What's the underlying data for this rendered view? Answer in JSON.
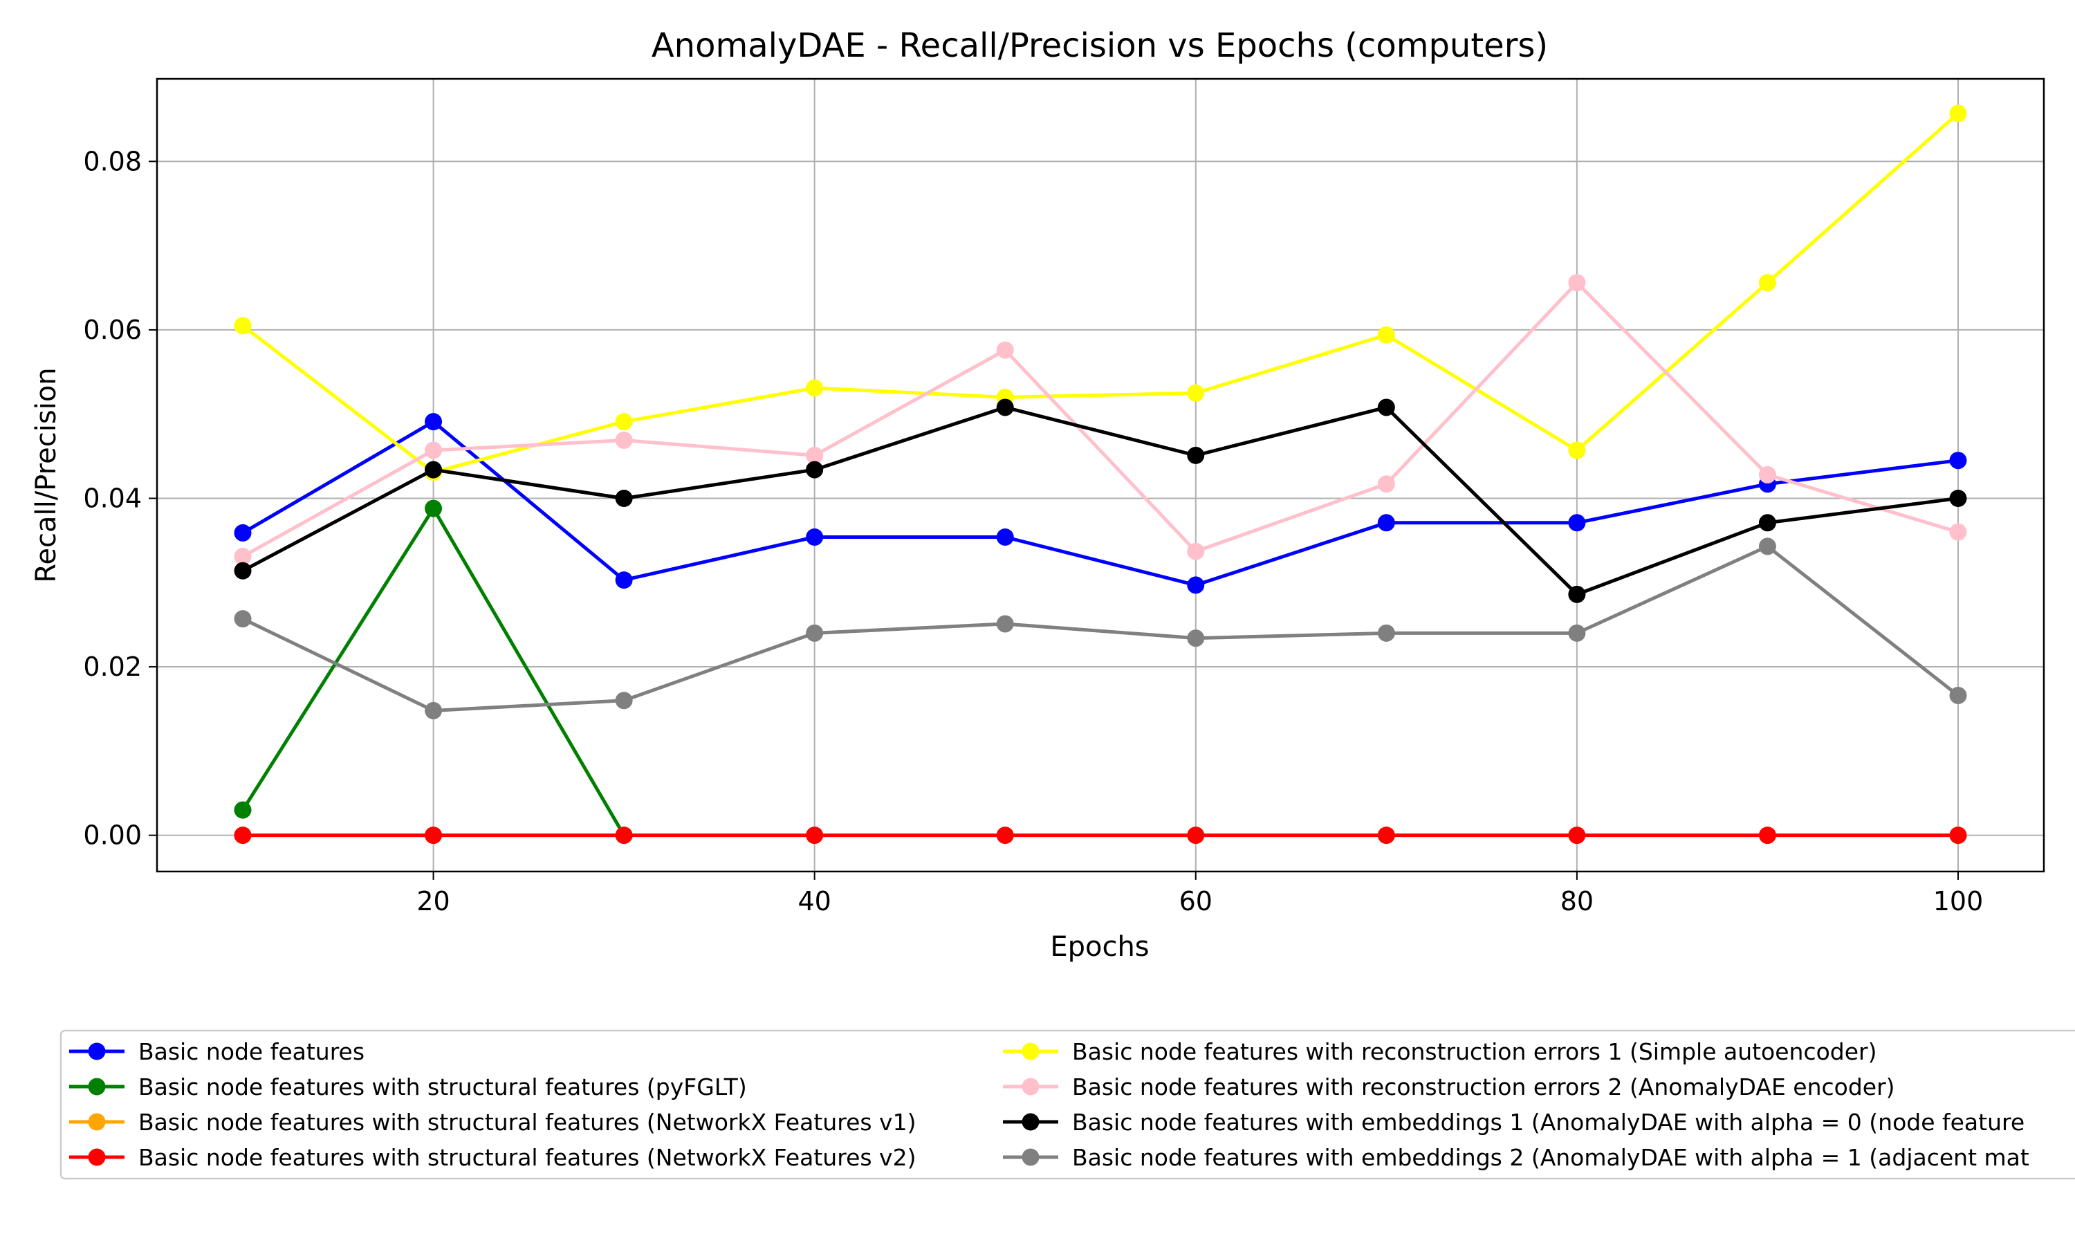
{
  "chart_data": {
    "type": "line",
    "title": "AnomalyDAE - Recall/Precision vs Epochs (computers)",
    "xlabel": "Epochs",
    "ylabel": "Recall/Precision",
    "xlim": [
      5.5,
      104.5
    ],
    "ylim": [
      -0.0043,
      0.0898
    ],
    "xticks": [
      20,
      40,
      60,
      80,
      100
    ],
    "xtick_labels": [
      "20",
      "40",
      "60",
      "80",
      "100"
    ],
    "yticks": [
      0.0,
      0.02,
      0.04,
      0.06,
      0.08
    ],
    "ytick_labels": [
      "0.00",
      "0.02",
      "0.04",
      "0.06",
      "0.08"
    ],
    "grid": true,
    "legend_position": "below plot, two columns",
    "x": [
      10,
      20,
      30,
      40,
      50,
      60,
      70,
      80,
      90,
      100
    ],
    "series": [
      {
        "name": "Basic node features",
        "color": "#0000ff",
        "values": [
          0.0359,
          0.0491,
          0.0303,
          0.0354,
          0.0354,
          0.0297,
          0.0371,
          0.0371,
          0.0417,
          0.0445
        ]
      },
      {
        "name": "Basic node features with structural features (pyFGLT)",
        "color": "#008000",
        "values": [
          0.003,
          0.0388,
          0.0,
          null,
          null,
          null,
          null,
          null,
          null,
          null
        ]
      },
      {
        "name": "Basic node features with structural features (NetworkX Features v1)",
        "color": "#ffa500",
        "values": [
          0.0,
          0.0,
          0.0,
          0.0,
          0.0,
          0.0,
          0.0,
          0.0,
          0.0,
          0.0
        ]
      },
      {
        "name": "Basic node features with structural features (NetworkX Features v2)",
        "color": "#ff0000",
        "values": [
          0.0,
          0.0,
          0.0,
          0.0,
          0.0,
          0.0,
          0.0,
          0.0,
          0.0,
          0.0
        ]
      },
      {
        "name": "Basic node features with reconstruction errors 1 (Simple autoencoder)",
        "color": "#ffff00",
        "values": [
          0.0605,
          0.0431,
          0.0491,
          0.0531,
          0.052,
          0.0525,
          0.0594,
          0.0457,
          0.0656,
          0.0857
        ]
      },
      {
        "name": "Basic node features with reconstruction errors 2 (AnomalyDAE encoder)",
        "color": "#ffc0cb",
        "values": [
          0.0331,
          0.0457,
          0.0469,
          0.0451,
          0.0576,
          0.0337,
          0.0417,
          0.0656,
          0.0428,
          0.036
        ]
      },
      {
        "name": "Basic node features with embeddings 1 (AnomalyDAE with alpha = 0 (node feature",
        "color": "#000000",
        "values": [
          0.0314,
          0.0434,
          0.04,
          0.0434,
          0.0508,
          0.0451,
          0.0508,
          0.0286,
          0.0371,
          0.04
        ]
      },
      {
        "name": "Basic node features with embeddings 2 (AnomalyDAE with alpha = 1 (adjacent mat",
        "color": "#808080",
        "values": [
          0.0257,
          0.0148,
          0.016,
          0.024,
          0.0251,
          0.0234,
          0.024,
          0.024,
          0.0343,
          0.0166
        ]
      }
    ]
  }
}
